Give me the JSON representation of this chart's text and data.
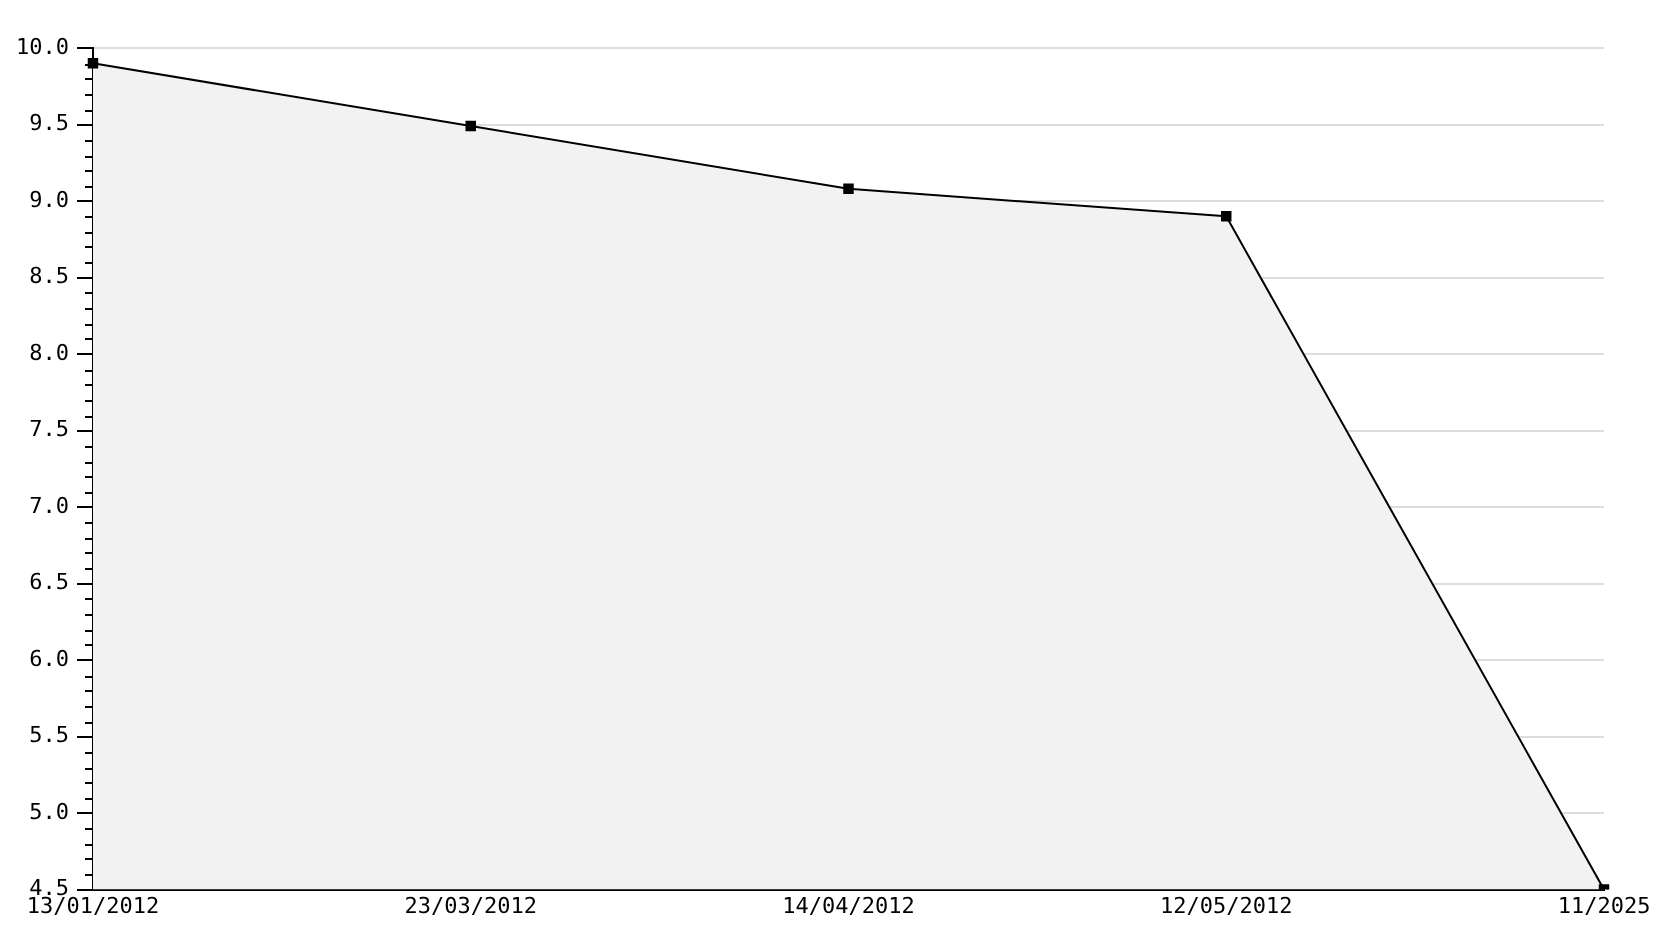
{
  "chart_data": {
    "type": "area",
    "categories": [
      "13/01/2012",
      "23/03/2012",
      "14/04/2012",
      "12/05/2012",
      "11/2025"
    ],
    "series": [
      {
        "color": "#000000",
        "values": [
          9.9,
          9.49,
          9.08,
          8.9,
          4.5
        ]
      }
    ],
    "ylim": [
      4.5,
      10.0
    ],
    "yticks": [
      {
        "value": 4.5,
        "label": "4.5"
      },
      {
        "value": 5.0,
        "label": "5.0"
      },
      {
        "value": 5.5,
        "label": "5.5"
      },
      {
        "value": 6.0,
        "label": "6.0"
      },
      {
        "value": 6.5,
        "label": "6.5"
      },
      {
        "value": 7.0,
        "label": "7.0"
      },
      {
        "value": 7.5,
        "label": "7.5"
      },
      {
        "value": 8.0,
        "label": "8.0"
      },
      {
        "value": 8.5,
        "label": "8.5"
      },
      {
        "value": 9.0,
        "label": "9.0"
      },
      {
        "value": 9.5,
        "label": "9.5"
      },
      {
        "value": 10.0,
        "label": "10.0"
      }
    ],
    "grid": "y",
    "legend": false,
    "marker": "square",
    "line_style": "solid"
  }
}
